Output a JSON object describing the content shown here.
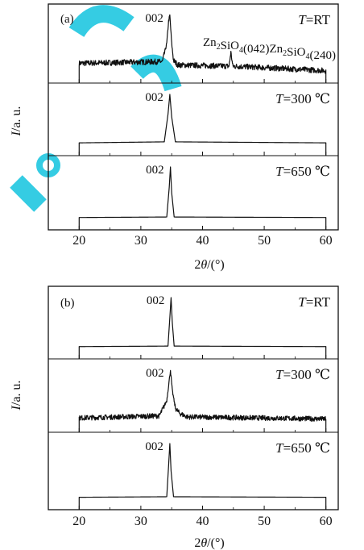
{
  "chart_data": [
    {
      "type": "line",
      "panel_label": "(a)",
      "xlabel": "2θ/(°)",
      "ylabel": "I/a. u.",
      "xlim": [
        15,
        62
      ],
      "xticks": [
        20,
        30,
        40,
        50,
        60
      ],
      "grid": false,
      "subplots": [
        {
          "temperature_label": "T=RT",
          "peak_label": "002",
          "extra_labels": [
            "Zn2SiO4(042)",
            "Zn2SiO4(240)"
          ],
          "x": [
            20,
            33.5,
            34.2,
            34.5,
            34.7,
            35.0,
            35.3,
            36.0,
            44.3,
            44.6,
            44.9,
            60
          ],
          "y": [
            0.15,
            0.18,
            0.5,
            0.9,
            1.0,
            0.5,
            0.2,
            0.12,
            0.1,
            0.35,
            0.1,
            0.02
          ],
          "noisy": true
        },
        {
          "temperature_label": "T=300 ℃",
          "peak_label": "002",
          "x": [
            20,
            33.8,
            34.4,
            34.7,
            35.0,
            35.6,
            60
          ],
          "y": [
            0.03,
            0.05,
            0.6,
            1.0,
            0.55,
            0.05,
            0.03
          ],
          "noisy": false
        },
        {
          "temperature_label": "T=650 ℃",
          "peak_label": "002",
          "x": [
            20,
            34.2,
            34.6,
            34.8,
            35.0,
            35.4,
            60
          ],
          "y": [
            0.02,
            0.03,
            0.6,
            1.0,
            0.5,
            0.03,
            0.02
          ],
          "noisy": false
        }
      ]
    },
    {
      "type": "line",
      "panel_label": "(b)",
      "xlabel": "2θ/(°)",
      "ylabel": "I/a. u.",
      "xlim": [
        15,
        62
      ],
      "xticks": [
        20,
        30,
        40,
        50,
        60
      ],
      "grid": false,
      "subplots": [
        {
          "temperature_label": "T=RT",
          "peak_label": "002",
          "x": [
            20,
            34.4,
            34.7,
            34.9,
            35.1,
            35.4,
            60
          ],
          "y": [
            0.02,
            0.03,
            0.6,
            1.0,
            0.5,
            0.03,
            0.02
          ],
          "noisy": false
        },
        {
          "temperature_label": "T=300 ℃",
          "peak_label": "002",
          "x": [
            20,
            33.0,
            34.2,
            34.6,
            34.8,
            35.1,
            35.6,
            36.3,
            37.5,
            60
          ],
          "y": [
            0.06,
            0.1,
            0.4,
            0.8,
            1.0,
            0.6,
            0.25,
            0.15,
            0.08,
            0.04
          ],
          "noisy": true
        },
        {
          "temperature_label": "T=650 ℃",
          "peak_label": "002",
          "x": [
            20,
            34.2,
            34.5,
            34.7,
            34.9,
            35.3,
            60
          ],
          "y": [
            0.02,
            0.03,
            0.6,
            1.0,
            0.5,
            0.03,
            0.02
          ],
          "noisy": false
        }
      ]
    }
  ]
}
